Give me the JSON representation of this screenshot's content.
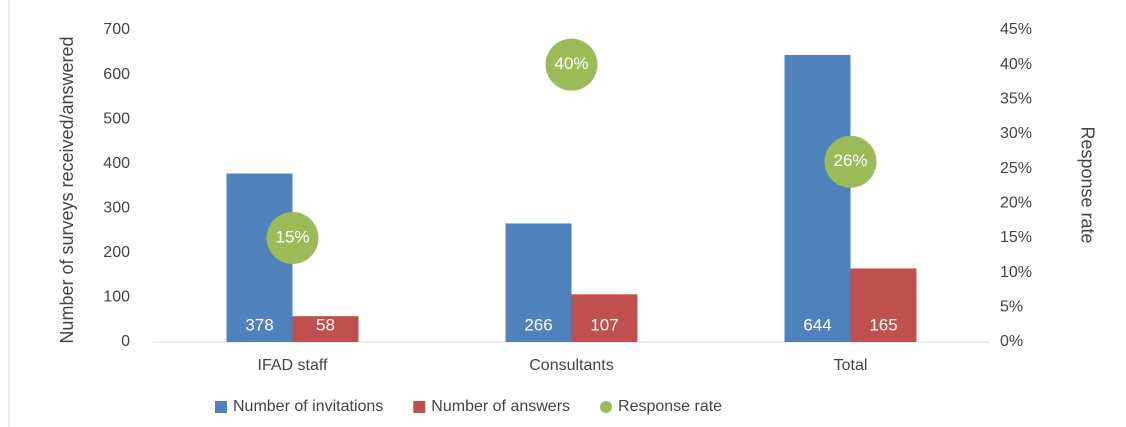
{
  "chart_data": {
    "type": "bar",
    "y_label": "Number of surveys received/answered",
    "y2_label": "Response rate",
    "categories": [
      "IFAD staff",
      "Consultants",
      "Total"
    ],
    "series": [
      {
        "name": "Number of invitations",
        "color": "#4f81bd",
        "values": [
          378,
          266,
          644
        ]
      },
      {
        "name": "Number of answers",
        "color": "#c0504d",
        "values": [
          58,
          107,
          165
        ]
      },
      {
        "name": "Response rate",
        "color": "#9bbb59",
        "type": "scatter",
        "axis": "y2",
        "values": [
          15,
          40,
          26
        ],
        "value_labels": [
          "15%",
          "40%",
          "26%"
        ]
      }
    ],
    "ylim": [
      0,
      700
    ],
    "yticks": [
      0,
      100,
      200,
      300,
      400,
      500,
      600,
      700
    ],
    "y2lim": [
      0,
      45
    ],
    "y2ticks": [
      {
        "value": 0,
        "label": "0%"
      },
      {
        "value": 5,
        "label": "5%"
      },
      {
        "value": 10,
        "label": "10%"
      },
      {
        "value": 15,
        "label": "15%"
      },
      {
        "value": 20,
        "label": "20%"
      },
      {
        "value": 25,
        "label": "25%"
      },
      {
        "value": 30,
        "label": "30%"
      },
      {
        "value": 35,
        "label": "35%"
      },
      {
        "value": 40,
        "label": "40%"
      },
      {
        "value": 45,
        "label": "45%"
      }
    ],
    "legend": "bottom"
  }
}
